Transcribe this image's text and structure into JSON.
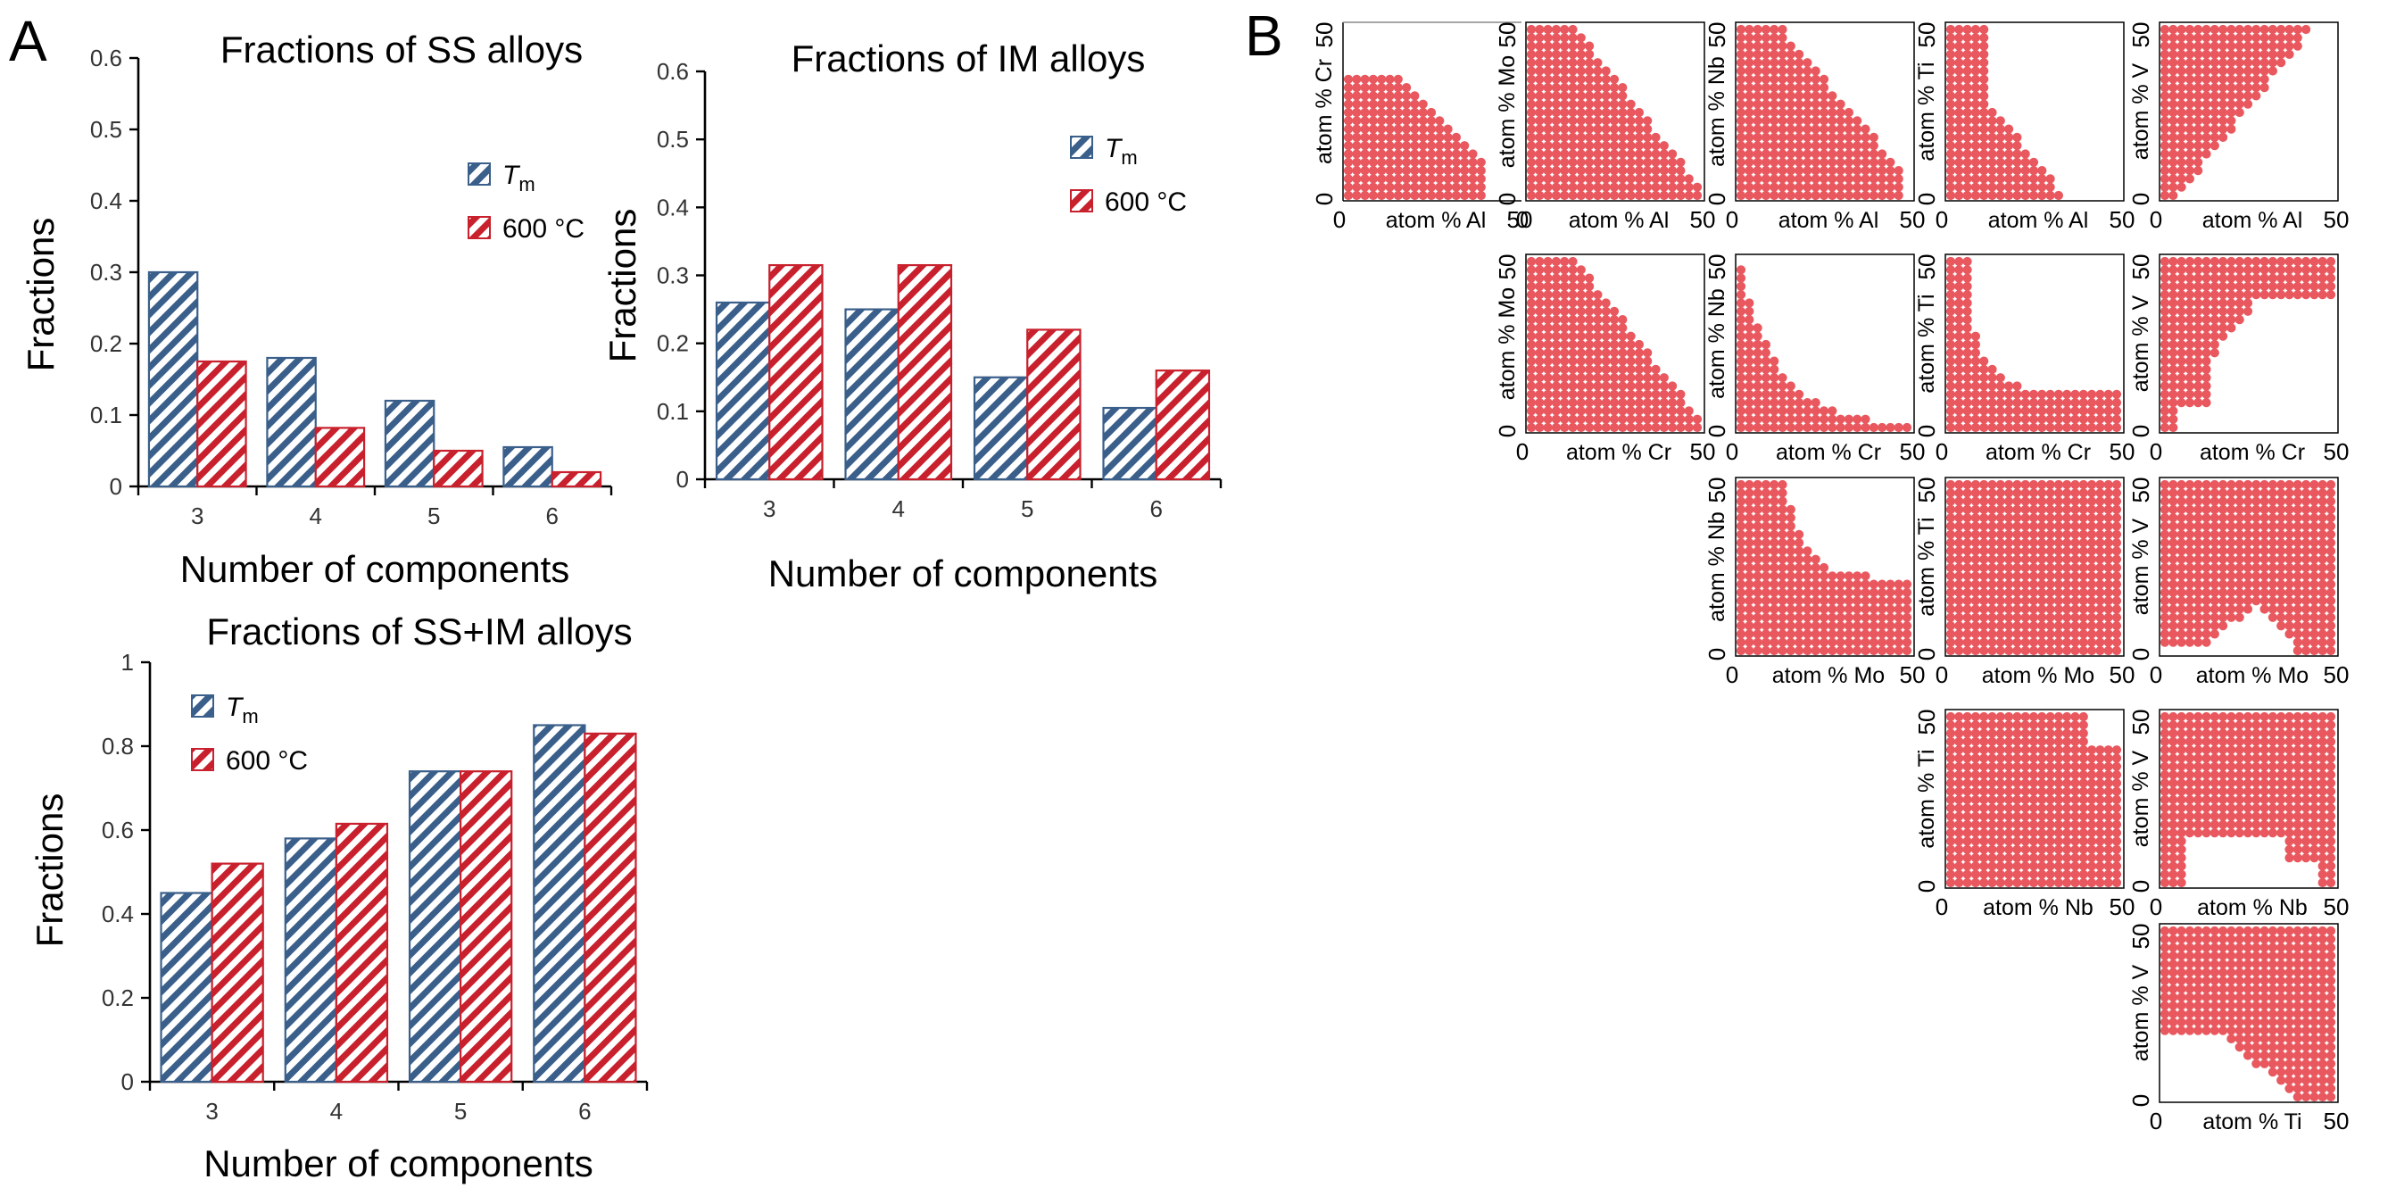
{
  "panels": {
    "a": "A",
    "b": "B"
  },
  "colors": {
    "tm": "#3a5f8a",
    "c600": "#c8202c",
    "dot": "#e8585e"
  },
  "chart_data": [
    {
      "type": "bar",
      "title": "Fractions of SS alloys",
      "xlabel": "Number of components",
      "ylabel": "Fractions",
      "categories": [
        "3",
        "4",
        "5",
        "6"
      ],
      "ylim": [
        0,
        0.6
      ],
      "yticks": [
        "0",
        "0.1",
        "0.2",
        "0.3",
        "0.4",
        "0.5",
        "0.6"
      ],
      "legend_position": "right",
      "series": [
        {
          "name": "Tm",
          "label_main": "T",
          "label_sub": "m",
          "values": [
            0.3,
            0.18,
            0.12,
            0.055
          ]
        },
        {
          "name": "600 °C",
          "label_main": "600 °C",
          "label_sub": "",
          "values": [
            0.175,
            0.082,
            0.05,
            0.02
          ]
        }
      ]
    },
    {
      "type": "bar",
      "title": "Fractions of IM alloys",
      "xlabel": "Number of components",
      "ylabel": "Fractions",
      "categories": [
        "3",
        "4",
        "5",
        "6"
      ],
      "ylim": [
        0,
        0.6
      ],
      "yticks": [
        "0",
        "0.1",
        "0.2",
        "0.3",
        "0.4",
        "0.5",
        "0.6"
      ],
      "legend_position": "right",
      "series": [
        {
          "name": "Tm",
          "label_main": "T",
          "label_sub": "m",
          "values": [
            0.26,
            0.25,
            0.15,
            0.105
          ]
        },
        {
          "name": "600 °C",
          "label_main": "600 °C",
          "label_sub": "",
          "values": [
            0.315,
            0.315,
            0.22,
            0.16
          ]
        }
      ]
    },
    {
      "type": "bar",
      "title": "Fractions of SS+IM alloys",
      "xlabel": "Number of components",
      "ylabel": "Fractions",
      "categories": [
        "3",
        "4",
        "5",
        "6"
      ],
      "ylim": [
        0,
        1
      ],
      "yticks": [
        "0",
        "0.2",
        "0.4",
        "0.6",
        "0.8",
        "1"
      ],
      "legend_position": "top-left",
      "series": [
        {
          "name": "Tm",
          "label_main": "T",
          "label_sub": "m",
          "values": [
            0.45,
            0.58,
            0.74,
            0.85
          ]
        },
        {
          "name": "600 °C",
          "label_main": "600 °C",
          "label_sub": "",
          "values": [
            0.52,
            0.615,
            0.74,
            0.83
          ]
        }
      ]
    },
    {
      "type": "scatter",
      "description": "phase maps",
      "xlim": [
        0,
        50
      ],
      "ylim": [
        0,
        50
      ],
      "tick_min": "0",
      "tick_max": "50",
      "label_prefix": "atom % ",
      "plots": [
        {
          "x": "Al",
          "y": "Cr"
        },
        {
          "x": "Al",
          "y": "Mo"
        },
        {
          "x": "Al",
          "y": "Nb"
        },
        {
          "x": "Al",
          "y": "Ti"
        },
        {
          "x": "Al",
          "y": "V"
        },
        {
          "x": "Cr",
          "y": "Mo"
        },
        {
          "x": "Cr",
          "y": "Nb"
        },
        {
          "x": "Cr",
          "y": "Ti"
        },
        {
          "x": "Cr",
          "y": "V"
        },
        {
          "x": "Mo",
          "y": "Nb"
        },
        {
          "x": "Mo",
          "y": "Ti"
        },
        {
          "x": "Mo",
          "y": "V"
        },
        {
          "x": "Nb",
          "y": "Ti"
        },
        {
          "x": "Nb",
          "y": "V"
        },
        {
          "x": "Ti",
          "y": "V"
        }
      ]
    }
  ]
}
